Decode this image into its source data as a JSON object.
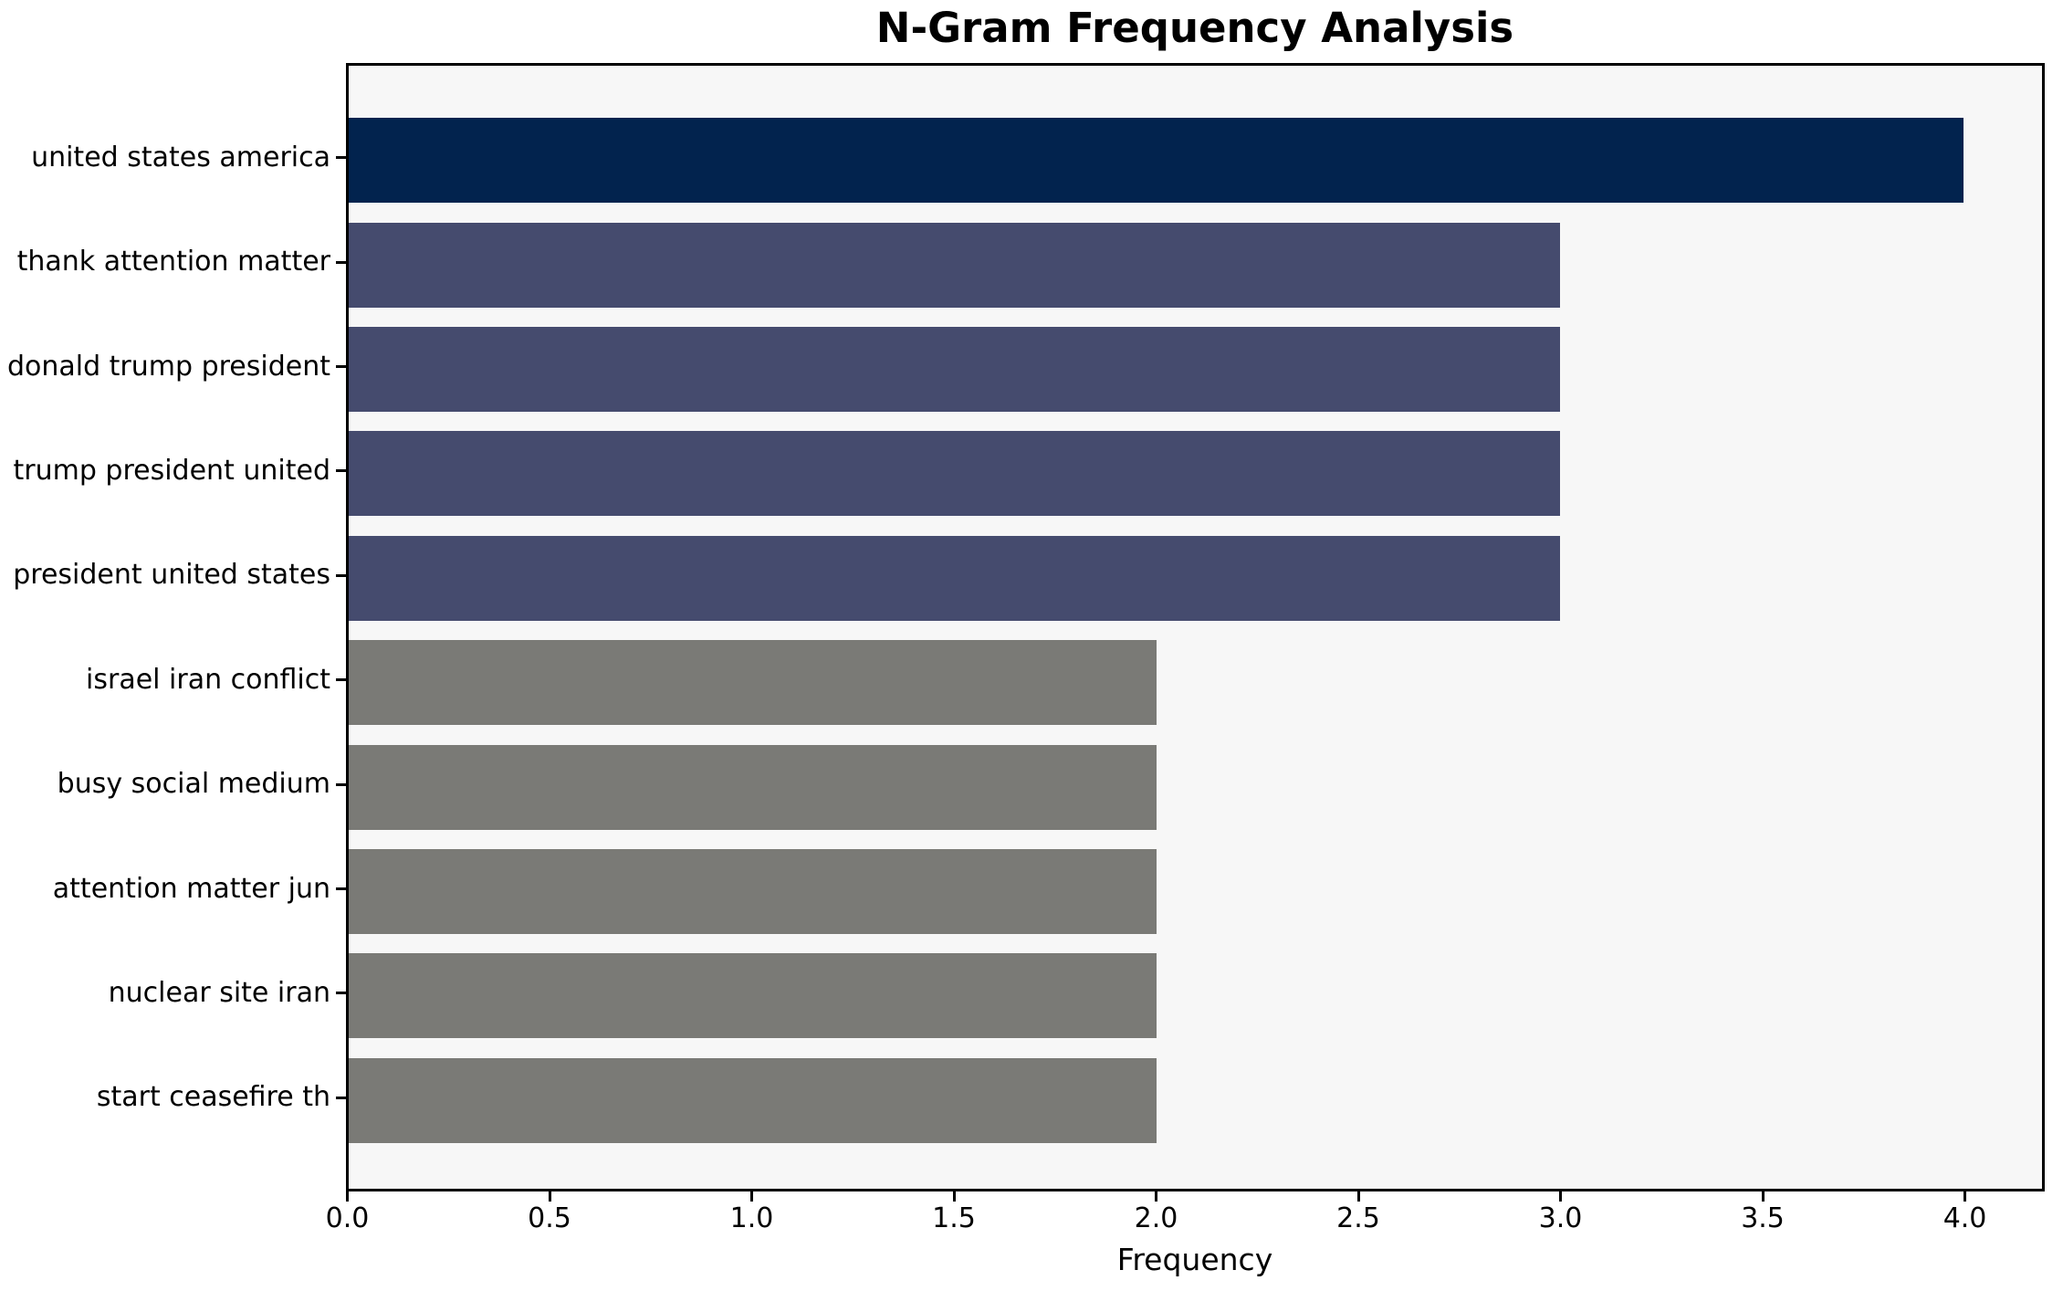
{
  "chart_data": {
    "type": "bar",
    "orientation": "horizontal",
    "title": "N-Gram Frequency Analysis",
    "xlabel": "Frequency",
    "ylabel": "",
    "categories": [
      "united states america",
      "thank attention matter",
      "donald trump president",
      "trump president united",
      "president united states",
      "israel iran conflict",
      "busy social medium",
      "attention matter jun",
      "nuclear site iran",
      "start ceasefire th"
    ],
    "values": [
      4,
      3,
      3,
      3,
      3,
      2,
      2,
      2,
      2,
      2
    ],
    "bar_colors": [
      "#02234e",
      "#454b6e",
      "#454b6e",
      "#454b6e",
      "#454b6e",
      "#7a7a76",
      "#7a7a76",
      "#7a7a76",
      "#7a7a76",
      "#7a7a76"
    ],
    "x_ticks": [
      "0.0",
      "0.5",
      "1.0",
      "1.5",
      "2.0",
      "2.5",
      "3.0",
      "3.5",
      "4.0"
    ],
    "x_tick_values": [
      0,
      0.5,
      1,
      1.5,
      2,
      2.5,
      3,
      3.5,
      4
    ],
    "xlim": [
      0,
      4.194
    ],
    "grid": false,
    "legend": null,
    "colors": {
      "plot_background": "#f7f7f7",
      "figure_background": "#ffffff",
      "spine": "#000000",
      "text": "#000000"
    }
  }
}
